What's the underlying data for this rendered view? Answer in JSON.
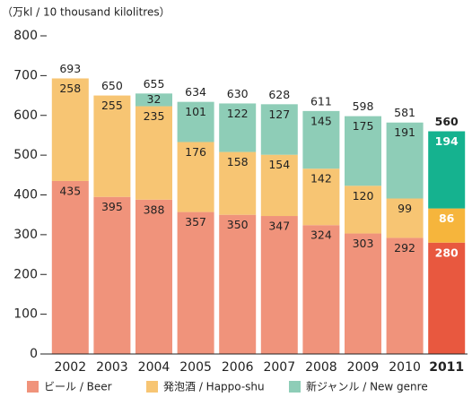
{
  "chart_data": {
    "type": "stacked_bar",
    "y_axis_label": "（万kl / 10 thousand kilolitres）",
    "categories": [
      "2002",
      "2003",
      "2004",
      "2005",
      "2006",
      "2007",
      "2008",
      "2009",
      "2010",
      "2011"
    ],
    "series": [
      {
        "name": "ビール / Beer",
        "color": "#f0937b",
        "highlight_color": "#e8583f",
        "values": [
          435,
          395,
          388,
          357,
          350,
          347,
          324,
          303,
          292,
          280
        ]
      },
      {
        "name": "発泡酒 / Happo-shu",
        "color": "#f7c573",
        "highlight_color": "#f6b53c",
        "values": [
          258,
          255,
          235,
          176,
          158,
          154,
          142,
          120,
          99,
          86
        ]
      },
      {
        "name": "新ジャンル / New genre",
        "color": "#8ecdb7",
        "highlight_color": "#15b28f",
        "values": [
          null,
          null,
          32,
          101,
          122,
          127,
          145,
          175,
          191,
          194
        ]
      }
    ],
    "totals": [
      693,
      650,
      655,
      634,
      630,
      628,
      611,
      598,
      581,
      560
    ],
    "highlight_index": 9,
    "ylim": [
      0,
      800
    ],
    "yticks": [
      0,
      100,
      200,
      300,
      400,
      500,
      600,
      700,
      800
    ],
    "grid": false
  }
}
